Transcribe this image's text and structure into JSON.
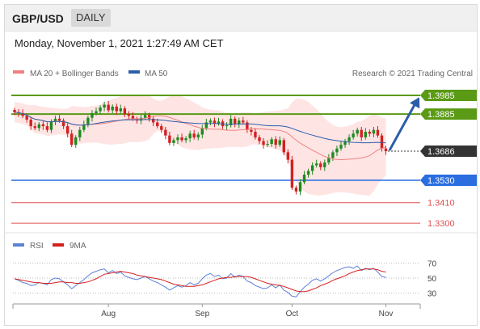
{
  "header": {
    "symbol": "GBP/USD",
    "period": "DAILY"
  },
  "timestamp": "Monday, November 1, 2021 1:27:49 AM CET",
  "legend": {
    "ma20_label": "MA 20 + Bollinger Bands",
    "ma50_label": "MA 50",
    "copyright": "Research © 2021 Trading Central",
    "rsi_label": "RSI",
    "rsi9_label": "9MA"
  },
  "colors": {
    "candle_up": "#1f8a1f",
    "candle_down": "#d42020",
    "ma20": "#f08080",
    "bollinger_fill": "#ffe1e1",
    "ma50": "#2c5ea8",
    "resistance": "#5a9a14",
    "support_blue": "#2a6ee0",
    "support_red": "#e05050",
    "rsi": "#5b82d6",
    "rsi9": "#d42020",
    "current_tag": "#333333"
  },
  "chart_data": {
    "type": "candlestick",
    "ylim": [
      1.327,
      1.405
    ],
    "xaxis_labels": [
      {
        "label": "Aug",
        "index": 23
      },
      {
        "label": "Sep",
        "index": 46
      },
      {
        "label": "Oct",
        "index": 68
      },
      {
        "label": "Nov",
        "index": 91
      }
    ],
    "levels": [
      {
        "value": 1.3985,
        "label": "1.3985",
        "kind": "resistance"
      },
      {
        "value": 1.3885,
        "label": "1.3885",
        "kind": "resistance"
      },
      {
        "value": 1.3686,
        "label": "1.3686",
        "kind": "current"
      },
      {
        "value": 1.353,
        "label": "1.3530",
        "kind": "support-blue"
      },
      {
        "value": 1.341,
        "label": "1.3410",
        "kind": "support-red"
      },
      {
        "value": 1.33,
        "label": "1.3300",
        "kind": "support-red"
      }
    ],
    "forecast_arrow": {
      "from_index": 92,
      "from_value": 1.3695,
      "to_index": 100,
      "to_value": 1.3975
    },
    "close": [
      1.3895,
      1.389,
      1.3875,
      1.3855,
      1.382,
      1.381,
      1.383,
      1.382,
      1.38,
      1.3845,
      1.386,
      1.385,
      1.382,
      1.378,
      1.372,
      1.376,
      1.38,
      1.383,
      1.3865,
      1.389,
      1.39,
      1.392,
      1.3935,
      1.3905,
      1.3925,
      1.39,
      1.3915,
      1.3885,
      1.3875,
      1.386,
      1.385,
      1.3865,
      1.388,
      1.386,
      1.384,
      1.382,
      1.38,
      1.377,
      1.373,
      1.3745,
      1.376,
      1.3745,
      1.3755,
      1.378,
      1.376,
      1.3775,
      1.381,
      1.384,
      1.385,
      1.3835,
      1.3845,
      1.382,
      1.3825,
      1.386,
      1.383,
      1.385,
      1.384,
      1.38,
      1.379,
      1.376,
      1.374,
      1.372,
      1.3725,
      1.375,
      1.372,
      1.3745,
      1.368,
      1.364,
      1.349,
      1.347,
      1.352,
      1.356,
      1.358,
      1.361,
      1.362,
      1.36,
      1.3625,
      1.365,
      1.368,
      1.37,
      1.372,
      1.374,
      1.376,
      1.378,
      1.38,
      1.376,
      1.379,
      1.378,
      1.38,
      1.377,
      1.37,
      1.3686
    ],
    "rsi_ylim": [
      20,
      80
    ],
    "rsi_ticks": [
      70,
      50,
      30
    ],
    "rsi": [
      49,
      47,
      44,
      43,
      40,
      41,
      44,
      43,
      41,
      48,
      50,
      49,
      45,
      41,
      36,
      40,
      44,
      48,
      53,
      57,
      59,
      61,
      62,
      57,
      60,
      56,
      58,
      53,
      51,
      49,
      48,
      50,
      52,
      49,
      46,
      44,
      41,
      38,
      34,
      37,
      40,
      38,
      40,
      44,
      41,
      43,
      49,
      54,
      56,
      52,
      54,
      49,
      50,
      56,
      51,
      54,
      52,
      46,
      44,
      40,
      38,
      36,
      37,
      41,
      37,
      41,
      34,
      31,
      26,
      25,
      32,
      38,
      42,
      47,
      49,
      46,
      49,
      53,
      57,
      60,
      62,
      64,
      65,
      63,
      66,
      60,
      63,
      61,
      63,
      58,
      52,
      51
    ],
    "rsi9": [
      49,
      48,
      47,
      46,
      45,
      44,
      44,
      43,
      43,
      43,
      44,
      45,
      45,
      44,
      44,
      43,
      43,
      44,
      45,
      47,
      49,
      52,
      55,
      56,
      57,
      58,
      59,
      58,
      57,
      56,
      54,
      53,
      52,
      51,
      50,
      49,
      48,
      46,
      44,
      42,
      41,
      40,
      39,
      39,
      39,
      40,
      41,
      43,
      45,
      47,
      49,
      50,
      51,
      51,
      52,
      52,
      52,
      52,
      51,
      49,
      47,
      45,
      43,
      42,
      41,
      40,
      39,
      37,
      35,
      33,
      32,
      32,
      33,
      35,
      37,
      40,
      42,
      44,
      47,
      49,
      51,
      53,
      56,
      58,
      60,
      61,
      62,
      62,
      62,
      61,
      59,
      58
    ]
  }
}
